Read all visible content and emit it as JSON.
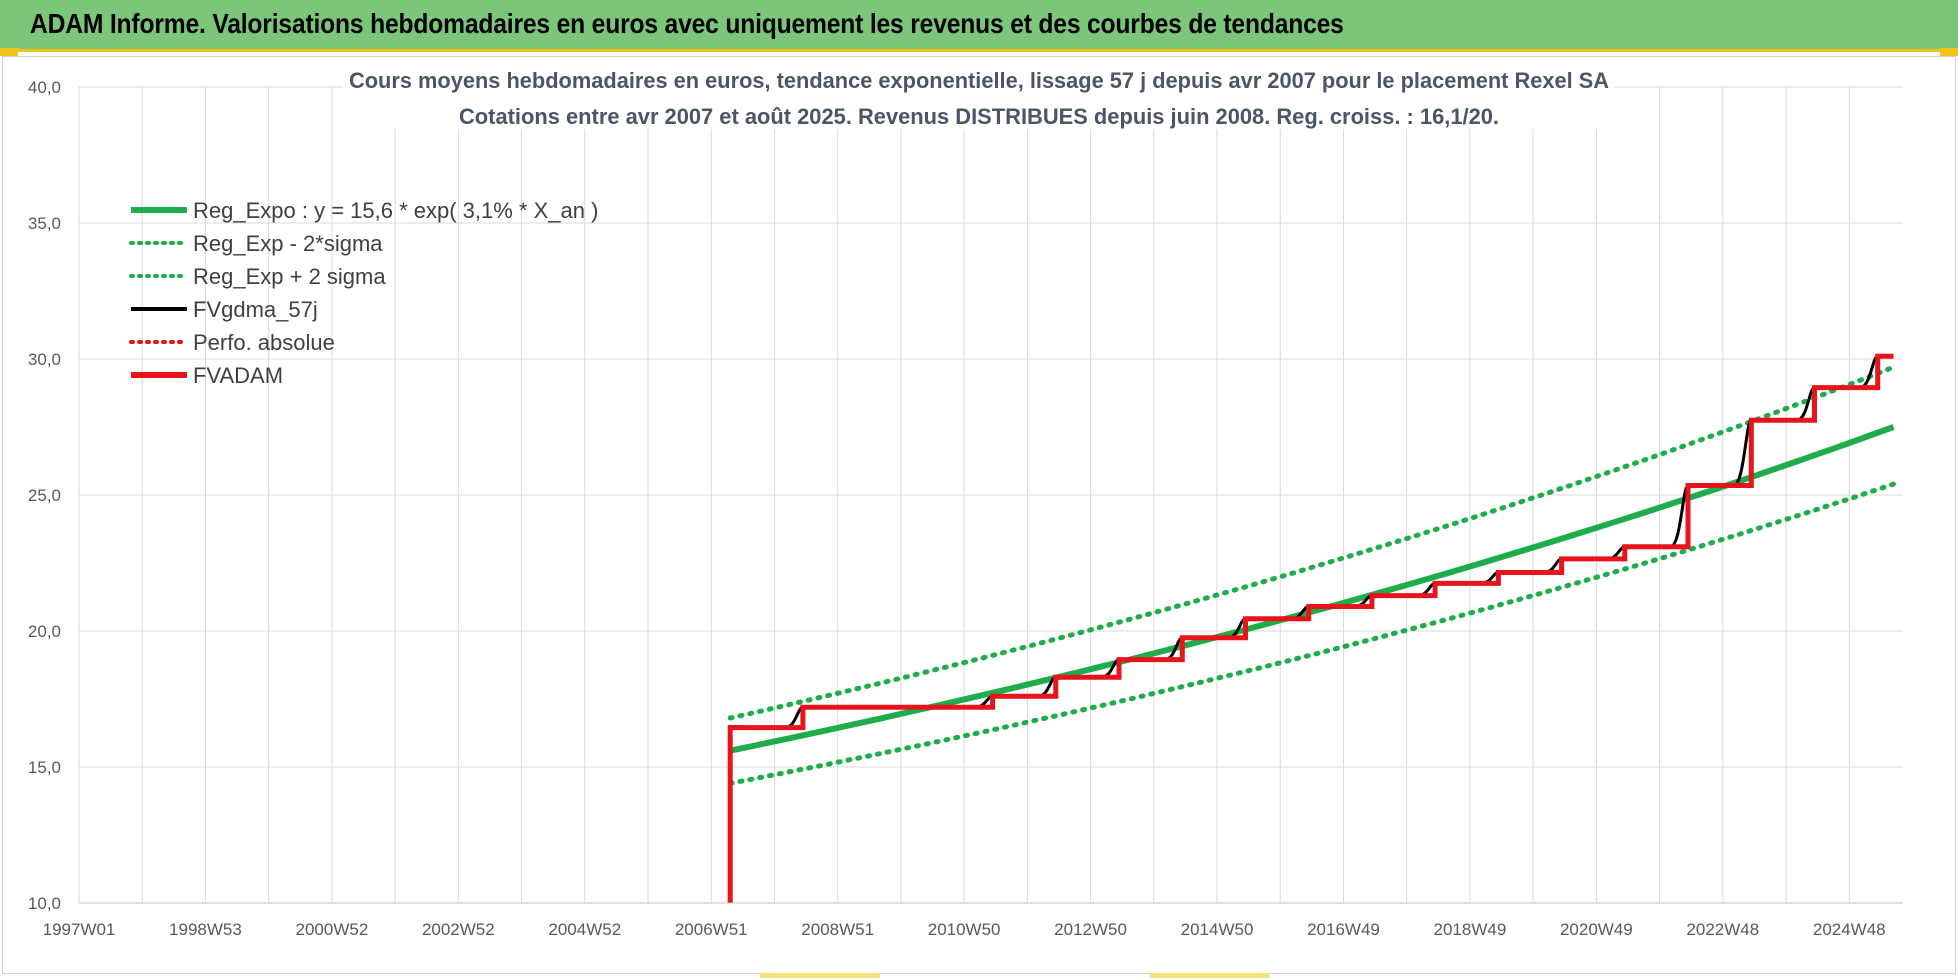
{
  "header": {
    "title": "ADAM Informe. Valorisations hebdomadaires en euros avec uniquement les revenus et des courbes de tendances"
  },
  "colors": {
    "header_bg": "#7cc67a",
    "accent": "#f0c419",
    "reg_green": "#1fad4c",
    "fv_red": "#e8141b",
    "fv_black": "#000000"
  },
  "chart_data": {
    "type": "line",
    "title": "Cours moyens hebdomadaires en euros, tendance exponentielle, lissage 57 j depuis avr 2007 pour le placement Rexel SA",
    "subtitle": "Cotations entre avr 2007 et août 2025. Revenus DISTRIBUES depuis juin 2008. Reg. croiss. : 16,1/20.",
    "x_axis": {
      "type": "time-weeks",
      "range": [
        "1997W01",
        "2025W35"
      ],
      "tick_labels": [
        "1997W01",
        "1998W53",
        "2000W52",
        "2002W52",
        "2004W52",
        "2006W51",
        "2008W51",
        "2010W50",
        "2012W50",
        "2014W50",
        "2016W49",
        "2018W49",
        "2020W49",
        "2022W48",
        "2024W48"
      ],
      "tick_years": [
        1997.0,
        1999.0,
        2001.0,
        2003.0,
        2005.0,
        2007.0,
        2009.0,
        2011.0,
        2013.0,
        2015.0,
        2017.0,
        2019.0,
        2021.0,
        2023.0,
        2025.0
      ]
    },
    "y_axis": {
      "range": [
        10,
        40
      ],
      "tick_labels": [
        "10,0",
        "15,0",
        "20,0",
        "25,0",
        "30,0",
        "35,0",
        "40,0"
      ],
      "ticks": [
        10,
        15,
        20,
        25,
        30,
        35,
        40
      ]
    },
    "grid": true,
    "legend_position": "top-left",
    "legend": [
      {
        "label": "Reg_Expo : y = 15,6 * exp( 3,1% *  X_an )",
        "style": "solid-thick",
        "color": "#1fad4c"
      },
      {
        "label": "Reg_Exp - 2*sigma",
        "style": "dotted",
        "color": "#1fad4c"
      },
      {
        "label": "Reg_Exp + 2 sigma",
        "style": "dotted",
        "color": "#1fad4c"
      },
      {
        "label": "FVgdma_57j",
        "style": "solid",
        "color": "#000000"
      },
      {
        "label": "Perfo. absolue",
        "style": "dotted",
        "color": "#e8141b"
      },
      {
        "label": "FVADAM",
        "style": "solid-thick",
        "color": "#e8141b"
      }
    ],
    "series": [
      {
        "name": "Reg_Expo : y = 15,6 * exp( 3,1% *  X_an )",
        "x": [
          2007.3,
          2025.7
        ],
        "y": [
          15.6,
          27.5
        ]
      },
      {
        "name": "Reg_Exp - 2*sigma",
        "x": [
          2007.3,
          2025.7
        ],
        "y": [
          14.4,
          25.4
        ]
      },
      {
        "name": "Reg_Exp + 2 sigma",
        "x": [
          2007.3,
          2025.7
        ],
        "y": [
          16.8,
          29.7
        ]
      },
      {
        "name": "FVADAM",
        "steps": [
          {
            "x": 2007.3,
            "y": 10.0
          },
          {
            "x": 2007.3,
            "y": 16.45
          },
          {
            "x": 2008.45,
            "y": 17.2
          },
          {
            "x": 2011.45,
            "y": 17.6
          },
          {
            "x": 2012.45,
            "y": 18.3
          },
          {
            "x": 2013.45,
            "y": 18.95
          },
          {
            "x": 2014.45,
            "y": 19.75
          },
          {
            "x": 2015.45,
            "y": 20.45
          },
          {
            "x": 2016.45,
            "y": 20.9
          },
          {
            "x": 2017.45,
            "y": 21.3
          },
          {
            "x": 2018.45,
            "y": 21.75
          },
          {
            "x": 2019.45,
            "y": 22.15
          },
          {
            "x": 2020.45,
            "y": 22.65
          },
          {
            "x": 2021.45,
            "y": 23.1
          },
          {
            "x": 2022.45,
            "y": 25.35
          },
          {
            "x": 2023.45,
            "y": 27.75
          },
          {
            "x": 2024.45,
            "y": 28.95
          },
          {
            "x": 2025.45,
            "y": 30.1
          }
        ],
        "x_end": 2025.7
      }
    ]
  }
}
